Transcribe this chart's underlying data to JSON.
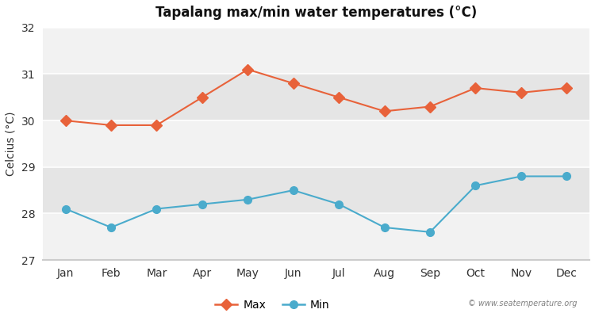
{
  "title": "Tapalang max/min water temperatures (°C)",
  "ylabel": "Celcius (°C)",
  "months": [
    "Jan",
    "Feb",
    "Mar",
    "Apr",
    "May",
    "Jun",
    "Jul",
    "Aug",
    "Sep",
    "Oct",
    "Nov",
    "Dec"
  ],
  "max_temps": [
    30.0,
    29.9,
    29.9,
    30.5,
    31.1,
    30.8,
    30.5,
    30.2,
    30.3,
    30.7,
    30.6,
    30.7
  ],
  "min_temps": [
    28.1,
    27.7,
    28.1,
    28.2,
    28.3,
    28.5,
    28.2,
    27.7,
    27.6,
    28.6,
    28.8,
    28.8
  ],
  "ylim": [
    27,
    32
  ],
  "yticks": [
    27,
    28,
    29,
    30,
    31,
    32
  ],
  "max_color": "#e8623a",
  "min_color": "#4aabcc",
  "bg_color": "#ffffff",
  "plot_bg_light": "#f2f2f2",
  "plot_bg_dark": "#e5e5e5",
  "grid_color": "#ffffff",
  "watermark": "© www.seatemperature.org",
  "legend_max": "Max",
  "legend_min": "Min"
}
